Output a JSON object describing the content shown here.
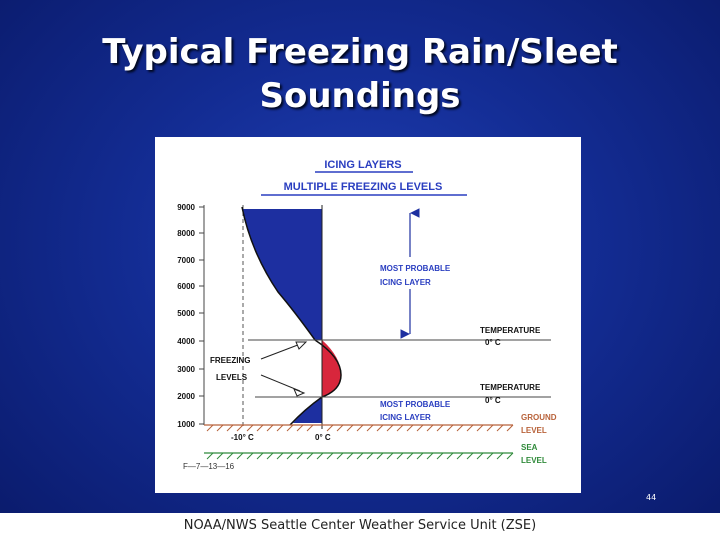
{
  "slide": {
    "title_line1": "Typical Freezing Rain/Sleet",
    "title_line2": "Soundings",
    "slide_number": "44",
    "footer": "NOAA/NWS Seattle Center Weather Service Unit (ZSE)"
  },
  "diagram": {
    "header_line1": "ICING  LAYERS",
    "header_line2": "MULTIPLE  FREEZING  LEVELS",
    "altitude_ticks": [
      "9000",
      "8000",
      "7000",
      "6000",
      "5000",
      "4000",
      "3000",
      "2000",
      "1000"
    ],
    "labels": {
      "most_probable_upper_1": "MOST  PROBABLE",
      "most_probable_upper_2": "ICING  LAYER",
      "temperature_upper_1": "TEMPERATURE",
      "temperature_upper_2": "0° C",
      "freezing_levels_1": "FREEZING",
      "freezing_levels_2": "LEVELS",
      "temperature_lower_1": "TEMPERATURE",
      "temperature_lower_2": "0° C",
      "most_probable_lower_1": "MOST  PROBABLE",
      "most_probable_lower_2": "ICING  LAYER",
      "ground_1": "GROUND",
      "ground_2": "LEVEL",
      "sea_1": "SEA",
      "sea_2": "LEVEL",
      "minus10": "-10° C",
      "zero": "0° C",
      "figure_id": "F—7—13—16"
    },
    "colors": {
      "blue": "#1d2fa0",
      "red": "#d8263c",
      "green": "#2f8a3a",
      "brown": "#b8623a"
    }
  }
}
